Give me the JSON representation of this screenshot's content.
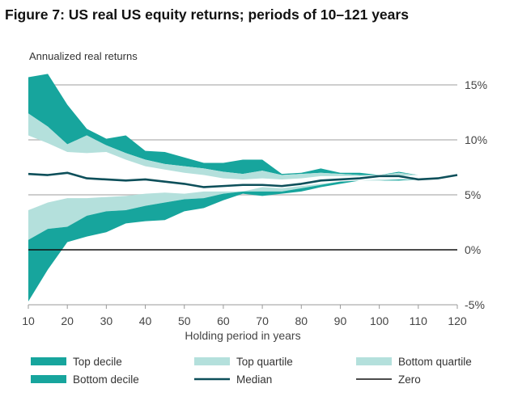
{
  "chart_data": {
    "type": "area",
    "title": "Figure 7: US real US equity returns; periods of 10–121 years",
    "ylabel": "Annualized real returns",
    "xlabel": "Holding period in years",
    "xlim": [
      10,
      120
    ],
    "ylim": [
      -5,
      16
    ],
    "x_ticks": [
      10,
      20,
      30,
      40,
      50,
      60,
      70,
      80,
      90,
      100,
      110,
      120
    ],
    "x_tick_labels": [
      "10",
      "20",
      "30",
      "40",
      "50",
      "60",
      "70",
      "80",
      "90",
      "100",
      "110",
      "120"
    ],
    "y_ticks": [
      15,
      10,
      5,
      0,
      -5
    ],
    "y_tick_labels": [
      "15%",
      "10%",
      "5%",
      "0%",
      "-5%"
    ],
    "grid": true,
    "legend_position": "bottom",
    "x": [
      10,
      15,
      20,
      25,
      30,
      35,
      40,
      45,
      50,
      55,
      60,
      65,
      70,
      75,
      80,
      85,
      90,
      95,
      100,
      105,
      110,
      115,
      120
    ],
    "series": [
      {
        "name": "Top decile upper",
        "values": [
          15.7,
          16.0,
          13.2,
          11.0,
          10.1,
          10.4,
          9.0,
          8.9,
          8.4,
          7.9,
          7.9,
          8.2,
          8.2,
          6.9,
          7.0,
          7.4,
          7.0,
          7.0,
          6.8,
          7.1,
          6.8,
          6.7,
          6.8
        ]
      },
      {
        "name": "Top quartile upper",
        "values": [
          12.4,
          11.2,
          9.6,
          10.4,
          9.5,
          8.8,
          8.2,
          7.8,
          7.6,
          7.4,
          7.1,
          6.9,
          7.2,
          6.8,
          6.9,
          7.0,
          6.9,
          6.8,
          6.8,
          7.0,
          6.8,
          6.7,
          6.8
        ]
      },
      {
        "name": "Top quartile lower",
        "values": [
          10.4,
          9.7,
          8.9,
          8.8,
          8.9,
          8.2,
          7.6,
          7.3,
          7.0,
          6.8,
          6.5,
          6.4,
          6.5,
          6.4,
          6.5,
          6.7,
          6.7,
          6.7,
          6.8,
          6.7,
          6.8,
          6.7,
          6.8
        ]
      },
      {
        "name": "Median",
        "values": [
          6.9,
          6.8,
          7.0,
          6.5,
          6.4,
          6.3,
          6.4,
          6.2,
          6.0,
          5.7,
          5.8,
          5.9,
          5.9,
          5.8,
          6.0,
          6.3,
          6.4,
          6.5,
          6.7,
          6.7,
          6.4,
          6.5,
          6.8
        ]
      },
      {
        "name": "Bottom quartile upper",
        "values": [
          3.6,
          4.3,
          4.7,
          4.7,
          4.8,
          4.9,
          5.1,
          5.2,
          5.1,
          5.3,
          5.3,
          5.3,
          5.7,
          5.6,
          5.8,
          6.0,
          6.2,
          6.3,
          6.4,
          6.4,
          6.4,
          6.5,
          6.8
        ]
      },
      {
        "name": "Bottom quartile lower",
        "values": [
          0.9,
          1.9,
          2.1,
          3.1,
          3.5,
          3.6,
          4.0,
          4.3,
          4.6,
          4.7,
          5.1,
          5.3,
          5.3,
          5.3,
          5.6,
          5.9,
          6.2,
          6.3,
          6.3,
          6.4,
          6.4,
          6.5,
          6.8
        ]
      },
      {
        "name": "Bottom decile lower",
        "values": [
          -4.7,
          -1.8,
          0.7,
          1.2,
          1.6,
          2.4,
          2.6,
          2.7,
          3.5,
          3.8,
          4.5,
          5.1,
          4.9,
          5.1,
          5.3,
          5.7,
          6.0,
          6.3,
          6.3,
          6.3,
          6.4,
          6.5,
          6.8
        ]
      }
    ],
    "legend": [
      {
        "label": "Top decile",
        "kind": "area",
        "color": "#17a59d"
      },
      {
        "label": "Top quartile",
        "kind": "area",
        "color": "#b4e0dc"
      },
      {
        "label": "Bottom quartile",
        "kind": "area",
        "color": "#b4e0dc"
      },
      {
        "label": "Bottom decile",
        "kind": "area",
        "color": "#17a59d"
      },
      {
        "label": "Median",
        "kind": "line",
        "color": "#0d4f5a"
      },
      {
        "label": "Zero",
        "kind": "line",
        "color": "#111111"
      }
    ]
  }
}
